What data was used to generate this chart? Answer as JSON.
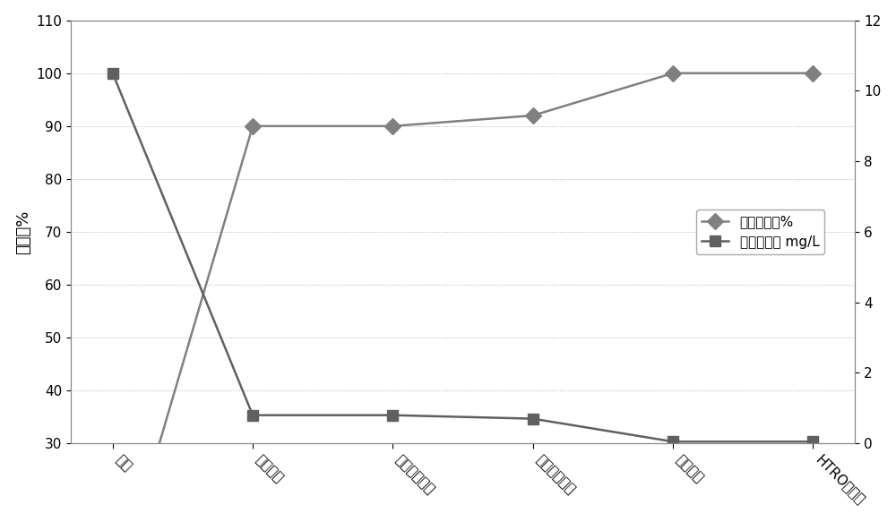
{
  "categories": [
    "来水",
    "气浮出水",
    "复合分离出水",
    "离子交换出水",
    "超滤出水",
    "HTRO滲透液"
  ],
  "cumulative_removal": [
    0,
    90,
    90,
    92,
    100,
    100
  ],
  "unit_oil": [
    10.5,
    0.8,
    0.8,
    0.7,
    0.05,
    0.05
  ],
  "left_ylabel": "去除率%",
  "left_ylim": [
    30,
    110
  ],
  "left_yticks": [
    30,
    40,
    50,
    60,
    70,
    80,
    90,
    100,
    110
  ],
  "right_ylim": [
    0,
    12
  ],
  "right_yticks": [
    0,
    2,
    4,
    6,
    8,
    10,
    12
  ],
  "legend_line1": "累积去除率%",
  "legend_line2": "单元含油量 mg/L",
  "line1_color": "#808080",
  "line2_color": "#606060",
  "bg_color": "#ffffff",
  "plot_bg_color": "#ffffff",
  "grid_color": "#aaaaaa",
  "marker1": "D",
  "marker2": "s",
  "markersize": 9,
  "linewidth": 1.8
}
